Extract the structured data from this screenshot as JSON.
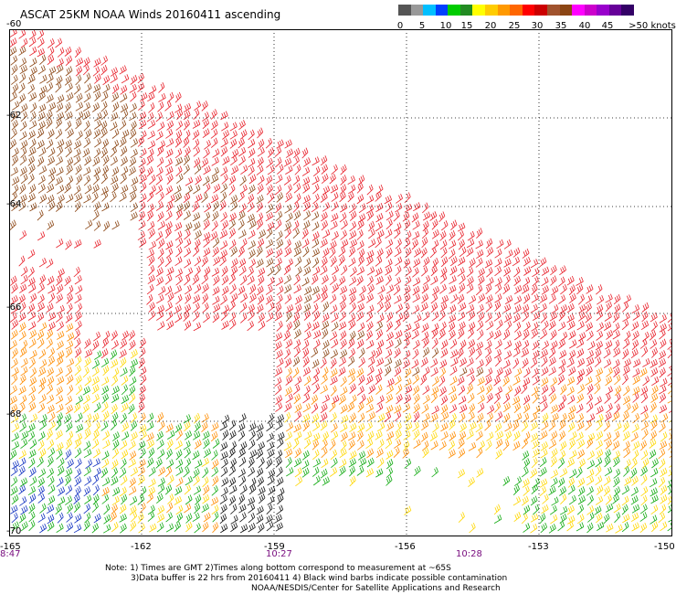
{
  "title": "ASCAT 25KM NOAA Winds 20160411 ascending",
  "legend": {
    "colors": [
      "#555555",
      "#999999",
      "#00bfff",
      "#0040ff",
      "#00cc00",
      "#228b22",
      "#ffff00",
      "#ffcc00",
      "#ff9900",
      "#ff6600",
      "#ff0000",
      "#cc0000",
      "#a0522d",
      "#8b4513",
      "#ff00ff",
      "#cc00cc",
      "#9900cc",
      "#660099",
      "#330066"
    ],
    "labels": [
      "0",
      "5",
      "10",
      "15",
      "20",
      "25",
      "30",
      "35",
      "40",
      "45",
      ">50 knots"
    ]
  },
  "map": {
    "lat_labels": [
      "-60",
      "-62",
      "-64",
      "-66",
      "-68",
      "-70"
    ],
    "lon_labels": [
      "-165",
      "-162",
      "-159",
      "-156",
      "-153",
      "-150"
    ],
    "time_labels": [
      "8:47",
      "10:27",
      "10:28"
    ],
    "swath_colors": {
      "red": "#e8202a",
      "brown": "#8b4513",
      "orange": "#ff8c00",
      "yellow": "#ffd700",
      "green": "#11aa11",
      "blue": "#1030c0",
      "cyan": "#00bcd4",
      "black": "#111111"
    }
  },
  "notes": {
    "line1": "Note: 1) Times are GMT 2)Times along bottom correspond to measurement at ~65S",
    "line2": "3)Data buffer is 22 hrs from 20160411 4) Black wind barbs indicate possible contamination",
    "line3": "NOAA/NESDIS/Center for Satellite Applications and Research"
  }
}
